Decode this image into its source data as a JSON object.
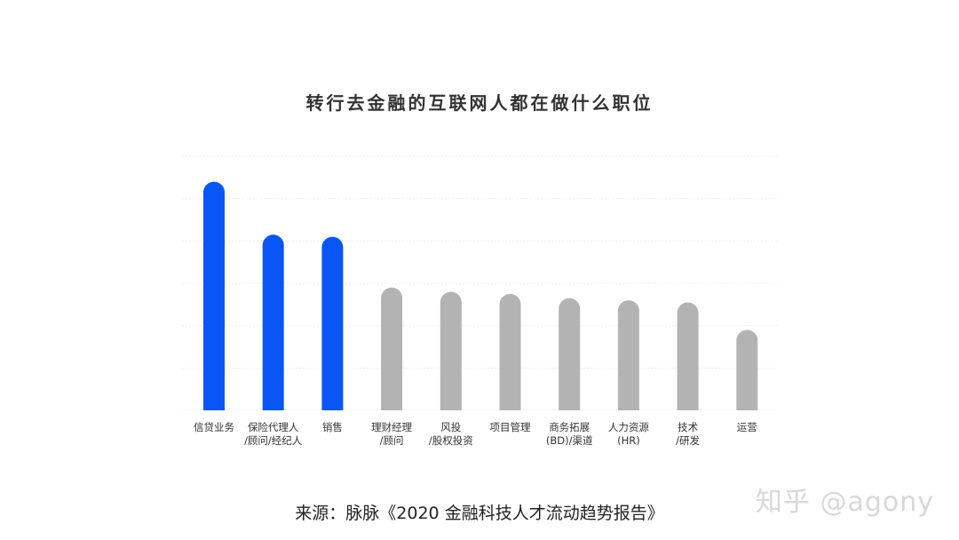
{
  "title": "转行去金融的互联网人都在做什么职位",
  "chart_data": {
    "type": "bar",
    "title": "转行去金融的互联网人都在做什么职位",
    "categories": [
      [
        "信贷业务"
      ],
      [
        "保险代理人",
        "/顾问/经纪人"
      ],
      [
        "销售"
      ],
      [
        "理财经理",
        "/顾问"
      ],
      [
        "风投",
        "/股权投资"
      ],
      [
        "项目管理"
      ],
      [
        "商务拓展",
        "(BD)/渠道"
      ],
      [
        "人力资源",
        "(HR)"
      ],
      [
        "技术",
        "/研发"
      ],
      [
        "运营"
      ]
    ],
    "values": [
      54,
      41.5,
      41,
      29,
      28,
      27.5,
      26.5,
      26,
      25.5,
      19
    ],
    "highlight_count": 3,
    "ylim": [
      0,
      60
    ],
    "grid": true,
    "legend": "none",
    "colors": {
      "highlight": "#0a55f5",
      "normal": "#b3b3b3",
      "grid": "#eeeeee",
      "label": "#333333"
    }
  },
  "source": "来源：脉脉《2020 金融科技人才流动趋势报告》",
  "watermark": "知乎 @agony"
}
